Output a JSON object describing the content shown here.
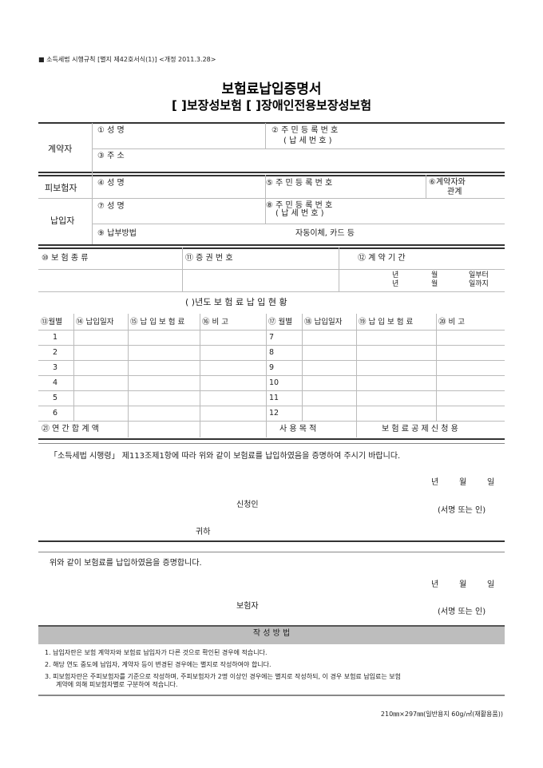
{
  "header_note": "■ 소득세법 시행규칙 [별지 제42호서식(1)] <개정 2011.3.28>",
  "title": "보험료납입증명서",
  "subtitle": "[    ]보장성보험 [    ]장애인전용보장성보험",
  "contractor": {
    "label": "계약자",
    "name": "① 성   명",
    "id": "② 주 민 등 록 번 호",
    "id_sub": "( 납 세 번 호 )",
    "address": "③ 주   소"
  },
  "insured": {
    "label": "피보험자",
    "name": "④ 성   명",
    "id": "⑤ 주 민 등 록 번 호",
    "relation": "⑥계약자와",
    "relation2": "관계"
  },
  "payer": {
    "label": "납입자",
    "name": "⑦ 성   명",
    "id": "⑧ 주 민 등 록 번 호",
    "id_sub": "( 납 세 번 호 )",
    "method_label": "⑨ 납부방법",
    "method_value": "자동이체, 카드 등"
  },
  "policy": {
    "type": "⑩ 보          험          종          류",
    "number": "⑪ 증          권          번          호",
    "period": "⑫ 계          약          기          간",
    "year": "년",
    "month": "월",
    "from": "일부터",
    "to": "일까지"
  },
  "yearly_title": "(                    )년도  보 험 료  납 입 현 황",
  "table": {
    "headers": [
      "⑬월별",
      "⑭ 납입일자",
      "⑮ 납 입 보 험 료",
      "⑯ 비       고",
      "⑰ 월별",
      "⑱ 납입일자",
      "⑲ 납 입 보 험 료",
      "⑳ 비       고"
    ],
    "left_months": [
      "1",
      "2",
      "3",
      "4",
      "5",
      "6"
    ],
    "right_months": [
      "7",
      "8",
      "9",
      "10",
      "11",
      "12"
    ],
    "total_label": "㉑  연 간 합 계 액",
    "purpose_label": "사   용   목   적",
    "purpose_value": "보 험 료 공 제 신 청 용"
  },
  "request_text": "「소득세법 시행령」 제113조제1항에 따라 위와 같이 보험료를 납입하였음을 증명하여 주시기 바랍니다.",
  "date": {
    "year": "년",
    "month": "월",
    "day": "일"
  },
  "applicant": "신청인",
  "sign": "(서명 또는 인)",
  "to": "귀하",
  "certify_text": "위와 같이 보험료를 납입하였음을 증명합니다.",
  "insurer": "보험자",
  "instructions": {
    "title": "작 성 방 법",
    "items": [
      "1. 납입자란은 보험 계약자와 보험료 납입자가 다른 것으로 확인된 경우에 적습니다.",
      "2. 해당 연도 중도에 납입자, 계약자 등이 변경된 경우에는 별지로 작성하여야 합니다.",
      "3. 피보험자란은 주피보험자를 기준으로 작성하며, 주피보험자가 2명 이상인 경우에는 별지로 작성하되, 이 경우 보험료 납입료는 보험",
      "계약에 의해 피보험자별로 구분하여 적습니다."
    ]
  },
  "footer": "210㎜×297㎜(일반용지 60g/㎡(재활용품))"
}
